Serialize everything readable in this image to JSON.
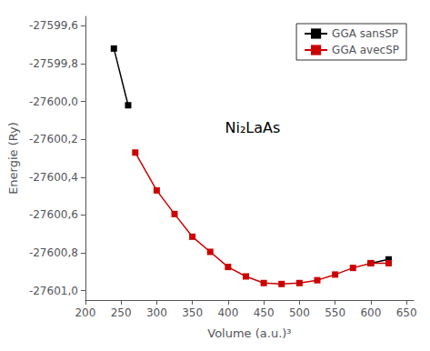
{
  "chart_data": {
    "type": "line",
    "title": "Ni₂LaAs",
    "x_label": "Volume (a.u.)³",
    "y_label": "Energie (Ry)",
    "series": [
      {
        "name": "GGA sansSP",
        "color": "#000000",
        "marker": "square",
        "x": [
          240,
          260
        ],
        "values": [
          -27599.72,
          -27600.02
        ]
      },
      {
        "name": "GGA sansSP",
        "color": "#000000",
        "marker": "square",
        "x": [
          600,
          625
        ],
        "values": [
          -27600.855,
          -27600.835
        ]
      },
      {
        "name": "GGA avecSP",
        "color": "#cc0000",
        "marker": "square",
        "x": [
          270,
          300,
          325,
          350,
          375,
          400,
          425,
          450,
          475,
          500,
          525,
          550,
          575,
          600,
          625
        ],
        "values": [
          -27600.27,
          -27600.47,
          -27600.595,
          -27600.715,
          -27600.795,
          -27600.875,
          -27600.925,
          -27600.96,
          -27600.965,
          -27600.96,
          -27600.945,
          -27600.915,
          -27600.88,
          -27600.855,
          -27600.855
        ]
      }
    ],
    "xlim": [
      200,
      660
    ],
    "ylim": [
      -27601.05,
      -27599.55
    ],
    "xticks": [
      200,
      250,
      300,
      350,
      400,
      450,
      500,
      550,
      600,
      650
    ],
    "yticks": [
      {
        "value": -27601.0,
        "label": "-27601,0"
      },
      {
        "value": -27600.8,
        "label": "-27600,8"
      },
      {
        "value": -27600.6,
        "label": "-27600,6"
      },
      {
        "value": -27600.4,
        "label": "-27600,4"
      },
      {
        "value": -27600.2,
        "label": "-27600,2"
      },
      {
        "value": -27600.0,
        "label": "-27600,0"
      },
      {
        "value": -27599.8,
        "label": "-27599,8"
      },
      {
        "value": -27599.6,
        "label": "-27599,6"
      }
    ],
    "legend": "upper right",
    "grid": false
  }
}
